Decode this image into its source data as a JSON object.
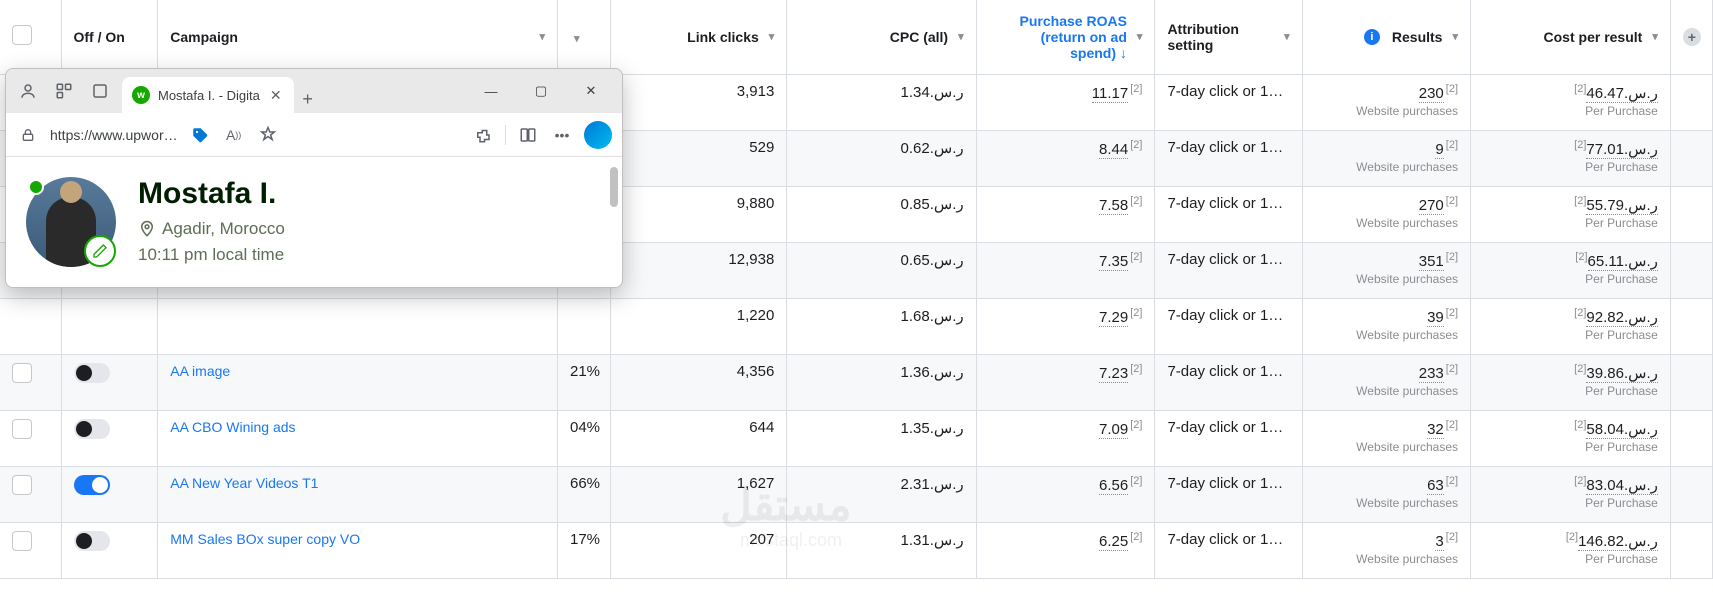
{
  "headers": {
    "off_on": "Off / On",
    "campaign": "Campaign",
    "link_clicks": "Link clicks",
    "cpc": "CPC (all)",
    "roas_l1": "Purchase ROAS",
    "roas_l2": "(return on ad",
    "roas_l3": "spend) ↓",
    "attribution": "Attribution setting",
    "results": "Results",
    "cost": "Cost per result"
  },
  "results_sub": "Website purchases",
  "cost_sub": "Per Purchase",
  "currency": "ر.س.",
  "sup": "[2]",
  "rows": [
    {
      "alt": false,
      "clicks": "3,913",
      "cpc": "1.34",
      "roas": "11.17",
      "attr": "7-day click or 1…",
      "results": "230",
      "cost": "46.47"
    },
    {
      "alt": true,
      "clicks": "529",
      "cpc": "0.62",
      "roas": "8.44",
      "attr": "7-day click or 1…",
      "results": "9",
      "cost": "77.01"
    },
    {
      "alt": false,
      "clicks": "9,880",
      "cpc": "0.85",
      "roas": "7.58",
      "attr": "7-day click or 1…",
      "results": "270",
      "cost": "55.79"
    },
    {
      "alt": true,
      "clicks": "12,938",
      "cpc": "0.65",
      "roas": "7.35",
      "attr": "7-day click or 1…",
      "results": "351",
      "cost": "65.11"
    },
    {
      "alt": false,
      "clicks": "1,220",
      "cpc": "1.68",
      "roas": "7.29",
      "attr": "7-day click or 1…",
      "results": "39",
      "cost": "92.82"
    },
    {
      "alt": true,
      "toggle": "off",
      "name": "AA image",
      "pct": "21%",
      "clicks": "4,356",
      "cpc": "1.36",
      "roas": "7.23",
      "attr": "7-day click or 1…",
      "results": "233",
      "cost": "39.86"
    },
    {
      "alt": false,
      "toggle": "off",
      "name": "AA CBO Wining ads",
      "pct": "04%",
      "clicks": "644",
      "cpc": "1.35",
      "roas": "7.09",
      "attr": "7-day click or 1…",
      "results": "32",
      "cost": "58.04"
    },
    {
      "alt": true,
      "toggle": "on",
      "name": "AA New Year Videos T1",
      "pct": "66%",
      "clicks": "1,627",
      "cpc": "2.31",
      "roas": "6.56",
      "attr": "7-day click or 1…",
      "results": "63",
      "cost": "83.04"
    },
    {
      "alt": false,
      "toggle": "off",
      "name": "MM Sales BOx super copy VO",
      "pct": "17%",
      "clicks": "207",
      "cpc": "1.31",
      "roas": "6.25",
      "attr": "7-day click or 1…",
      "results": "3",
      "cost": "146.82"
    }
  ],
  "browser": {
    "tab_title": "Mostafa I. - Digita",
    "url": "https://www.upwor…",
    "name": "Mostafa I.",
    "location": "Agadir, Morocco",
    "time": "10:11 pm local time"
  },
  "watermark": "مستقل",
  "watermark2": "mostaql.com"
}
